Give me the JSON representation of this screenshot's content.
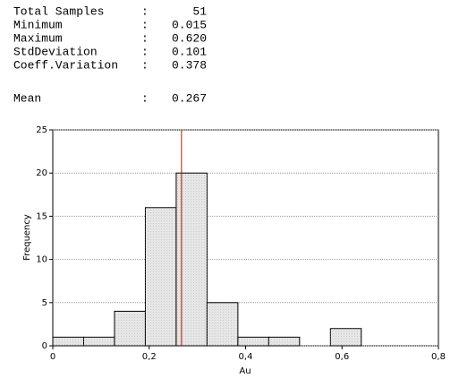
{
  "stats": {
    "rows": [
      {
        "label": "Total Samples",
        "sep": ":",
        "value": "51"
      },
      {
        "label": "Minimum",
        "sep": ":",
        "value": "0.015"
      },
      {
        "label": "Maximum",
        "sep": ":",
        "value": "0.620"
      },
      {
        "label": "StdDeviation",
        "sep": ":",
        "value": "0.101"
      },
      {
        "label": "Coeff.Variation",
        "sep": ":",
        "value": "0.378"
      }
    ],
    "mean": {
      "label": "Mean",
      "sep": ":",
      "value": "0.267",
      "color": "#e00000"
    }
  },
  "chart_data": {
    "type": "histogram",
    "xlabel": "Au",
    "ylabel": "Frequency",
    "bins": [
      0,
      0.064,
      0.128,
      0.192,
      0.256,
      0.32,
      0.384,
      0.448,
      0.512,
      0.576,
      0.64
    ],
    "values": [
      1,
      1,
      4,
      16,
      20,
      5,
      1,
      1,
      0,
      2
    ],
    "color": "#e6e6e6",
    "xlim": [
      0,
      0.8
    ],
    "xticks": [
      0,
      {
        "value": 0.2,
        "label": "0,2"
      },
      {
        "value": 0.4,
        "label": "0,4"
      },
      {
        "value": 0.6,
        "label": "0,6"
      },
      {
        "value": 0.8,
        "label": "0,8"
      }
    ],
    "ylim": [
      0,
      25
    ],
    "yticks": [
      0,
      5,
      10,
      15,
      20,
      25
    ],
    "grid": true
  }
}
